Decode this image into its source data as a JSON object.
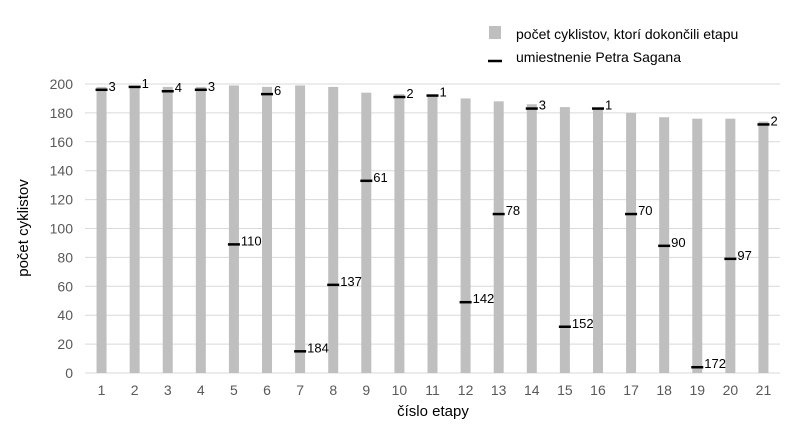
{
  "chart_data": {
    "type": "bar",
    "title": "",
    "xlabel": "číslo etapy",
    "ylabel": "počet cyklistov",
    "ylim": [
      0,
      200
    ],
    "yticks": [
      0,
      20,
      40,
      60,
      80,
      100,
      120,
      140,
      160,
      180,
      200
    ],
    "grid": true,
    "legend_position": "top-right",
    "categories": [
      "1",
      "2",
      "3",
      "4",
      "5",
      "6",
      "7",
      "8",
      "9",
      "10",
      "11",
      "12",
      "13",
      "14",
      "15",
      "16",
      "17",
      "18",
      "19",
      "20",
      "21"
    ],
    "series": [
      {
        "name": "počet cyklistov, ktorí dokončili etapu",
        "kind": "bar",
        "color": "#bfbfbf",
        "values": [
          198,
          198,
          198,
          198,
          199,
          198,
          199,
          198,
          194,
          193,
          192,
          190,
          188,
          186,
          184,
          183,
          180,
          177,
          176,
          176,
          174
        ]
      },
      {
        "name": "umiestnenie Petra Sagana",
        "kind": "marker",
        "color": "#000000",
        "values": [
          196,
          198,
          195,
          196,
          89,
          193,
          15,
          61,
          133,
          191,
          192,
          49,
          110,
          183,
          32,
          183,
          110,
          88,
          4,
          79,
          172
        ],
        "labels": [
          "3",
          "1",
          "4",
          "3",
          "110",
          "6",
          "184",
          "137",
          "61",
          "2",
          "1",
          "142",
          "78",
          "3",
          "152",
          "1",
          "70",
          "90",
          "172",
          "97",
          "2"
        ]
      }
    ]
  }
}
